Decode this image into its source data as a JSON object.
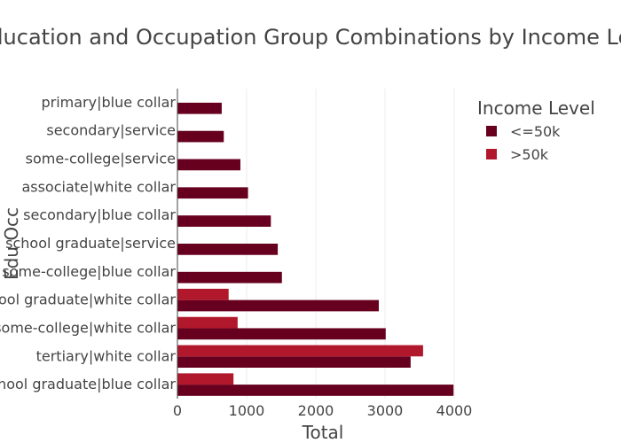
{
  "chart_data": {
    "type": "bar",
    "orientation": "horizontal",
    "barmode": "group",
    "title": "Education and Occupation Group Combinations by Income Level",
    "xlabel": "Total",
    "ylabel": "Edu Occ",
    "xlim": [
      0,
      4000
    ],
    "x_ticks": [
      "0",
      "1000",
      "2000",
      "3000",
      "4000"
    ],
    "grid": "vertical",
    "legend": {
      "title": "Income Level",
      "placement": "top-right"
    },
    "categories": [
      "primary|blue collar",
      "secondary|service",
      "some-college|service",
      "associate|white collar",
      "secondary|blue collar",
      "high school graduate|service",
      "some-college|blue collar",
      "high school graduate|white collar",
      "some-college|white collar",
      "tertiary|white collar",
      "high school graduate|blue collar"
    ],
    "series": [
      {
        "name": "<=50k",
        "color": "#67001f",
        "values": [
          640,
          670,
          910,
          1020,
          1350,
          1450,
          1510,
          2910,
          3010,
          3370,
          3990
        ]
      },
      {
        "name": ">50k",
        "color": "#b2182b",
        "values": [
          0,
          0,
          0,
          0,
          0,
          0,
          0,
          740,
          870,
          3550,
          810
        ]
      }
    ]
  }
}
